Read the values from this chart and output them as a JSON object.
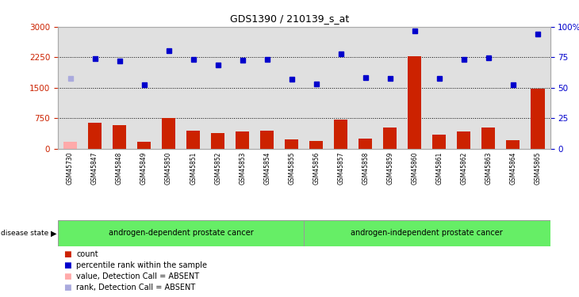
{
  "title": "GDS1390 / 210139_s_at",
  "samples": [
    "GSM45730",
    "GSM45847",
    "GSM45848",
    "GSM45849",
    "GSM45850",
    "GSM45851",
    "GSM45852",
    "GSM45853",
    "GSM45854",
    "GSM45855",
    "GSM45856",
    "GSM45857",
    "GSM45858",
    "GSM45859",
    "GSM45860",
    "GSM45861",
    "GSM45862",
    "GSM45863",
    "GSM45864",
    "GSM45865"
  ],
  "bar_values": [
    170,
    630,
    580,
    175,
    750,
    430,
    390,
    420,
    430,
    230,
    190,
    710,
    240,
    520,
    2270,
    340,
    410,
    510,
    200,
    1480
  ],
  "bar_absent": [
    true,
    false,
    false,
    false,
    false,
    false,
    false,
    false,
    false,
    false,
    false,
    false,
    false,
    false,
    false,
    false,
    false,
    false,
    false,
    false
  ],
  "dot_values": [
    1730,
    2220,
    2160,
    1570,
    2410,
    2200,
    2060,
    2170,
    2200,
    1700,
    1600,
    2330,
    1740,
    1720,
    2900,
    1720,
    2200,
    2230,
    1570,
    2810
  ],
  "dot_absent": [
    true,
    false,
    false,
    false,
    false,
    false,
    false,
    false,
    false,
    false,
    false,
    false,
    false,
    false,
    false,
    false,
    false,
    false,
    false,
    false
  ],
  "ylim_left": [
    0,
    3000
  ],
  "ylim_right": [
    0,
    100
  ],
  "yticks_left": [
    0,
    750,
    1500,
    2250,
    3000
  ],
  "yticks_right": [
    0,
    25,
    50,
    75,
    100
  ],
  "group1_count": 10,
  "group2_count": 10,
  "group1_label": "androgen-dependent prostate cancer",
  "group2_label": "androgen-independent prostate cancer",
  "bar_color_present": "#cc2200",
  "bar_color_absent": "#ffaaaa",
  "dot_color_present": "#0000cc",
  "dot_color_absent": "#aaaadd",
  "bg_color": "#e0e0e0",
  "group_bg": "#66ee66",
  "group_border": "#999999",
  "left_axis_color": "#cc2200",
  "right_axis_color": "#0000cc",
  "legend_items": [
    "count",
    "percentile rank within the sample",
    "value, Detection Call = ABSENT",
    "rank, Detection Call = ABSENT"
  ],
  "legend_colors": [
    "#cc2200",
    "#0000cc",
    "#ffaaaa",
    "#aaaadd"
  ],
  "hgrid_vals": [
    750,
    1500,
    2250
  ]
}
